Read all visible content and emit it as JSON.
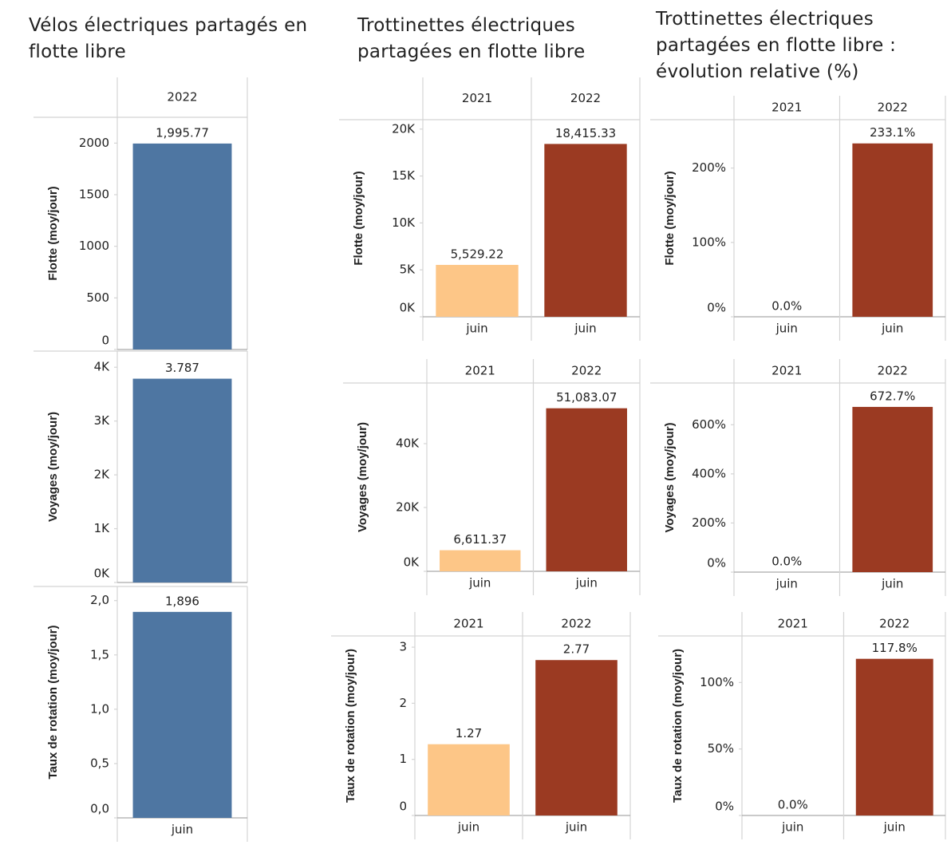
{
  "chart_data": [
    {
      "type": "bar",
      "title": "Vélos électriques partagés en flotte libre",
      "ylabel": "Flotte (moy/jour)",
      "facets": [
        "2022"
      ],
      "categories": [
        null
      ],
      "values": [
        1995.77
      ],
      "value_labels": [
        "1,995.77"
      ],
      "colors": [
        "#4e76a2"
      ],
      "ylim": [
        0,
        2250
      ],
      "yticks": [
        0,
        500,
        1000,
        1500,
        2000
      ]
    },
    {
      "type": "bar",
      "ylabel": "Voyages (moy/jour)",
      "categories": [
        null
      ],
      "values": [
        3787
      ],
      "value_labels": [
        "3.787"
      ],
      "colors": [
        "#4e76a2"
      ],
      "ylim": [
        0,
        4300
      ],
      "yticks": [
        {
          "value": 0,
          "label": "0K"
        },
        {
          "value": 1000,
          "label": "1K"
        },
        {
          "value": 2000,
          "label": "2K"
        },
        {
          "value": 3000,
          "label": "3K"
        },
        {
          "value": 4000,
          "label": "4K"
        }
      ]
    },
    {
      "type": "bar",
      "ylabel": "Taux de rotation (moy/jour)",
      "categories": [
        "juin"
      ],
      "values": [
        1.896
      ],
      "value_labels": [
        "1,896"
      ],
      "colors": [
        "#4e76a2"
      ],
      "ylim": [
        0,
        2.13
      ],
      "yticks": [
        {
          "value": 0,
          "label": "0,0"
        },
        {
          "value": 0.5,
          "label": "0,5"
        },
        {
          "value": 1,
          "label": "1,0"
        },
        {
          "value": 1.5,
          "label": "1,5"
        },
        {
          "value": 2,
          "label": "2,0"
        }
      ]
    },
    {
      "type": "bar",
      "title": "Trottinettes électriques partagées en flotte libre",
      "ylabel": "Flotte (moy/jour)",
      "facets": [
        "2021",
        "2022"
      ],
      "categories": [
        "juin",
        "juin"
      ],
      "values": [
        5529.22,
        18415.33
      ],
      "value_labels": [
        "5,529.22",
        "18,415.33"
      ],
      "colors": [
        "#fdc687",
        "#9b3a22"
      ],
      "ylim": [
        0,
        21000
      ],
      "yticks": [
        {
          "value": 0,
          "label": "0K"
        },
        {
          "value": 5000,
          "label": "5K"
        },
        {
          "value": 10000,
          "label": "10K"
        },
        {
          "value": 15000,
          "label": "15K"
        },
        {
          "value": 20000,
          "label": "20K"
        }
      ]
    },
    {
      "type": "bar",
      "ylabel": "Voyages (moy/jour)",
      "facets": [
        "2021",
        "2022"
      ],
      "categories": [
        "juin",
        "juin"
      ],
      "values": [
        6611.37,
        51083.07
      ],
      "value_labels": [
        "6,611.37",
        "51,083.07"
      ],
      "colors": [
        "#fdc687",
        "#9b3a22"
      ],
      "ylim": [
        0,
        59000
      ],
      "yticks": [
        {
          "value": 0,
          "label": "0K"
        },
        {
          "value": 20000,
          "label": "20K"
        },
        {
          "value": 40000,
          "label": "40K"
        }
      ]
    },
    {
      "type": "bar",
      "ylabel": "Taux de rotation (moy/jour)",
      "facets": [
        "2021",
        "2022"
      ],
      "categories": [
        "juin",
        "juin"
      ],
      "values": [
        1.27,
        2.77
      ],
      "colors": [
        "#fdc687",
        "#9b3a22"
      ],
      "ylim": [
        0,
        3.2
      ],
      "yticks": [
        0,
        1,
        2,
        3
      ]
    },
    {
      "type": "bar",
      "title": "Trottinettes électriques partagées en flotte libre : évolution relative (%)",
      "ylabel": "Flotte (moy/jour)",
      "facets": [
        "2021",
        "2022"
      ],
      "categories": [
        "juin",
        "juin"
      ],
      "values": [
        0,
        233.1
      ],
      "value_labels": [
        "0.0%",
        "233.1%"
      ],
      "colors": [
        "#9b3a22",
        "#9b3a22"
      ],
      "ylim": [
        0,
        265
      ],
      "yticks": [
        {
          "value": 0,
          "label": "0%"
        },
        {
          "value": 100,
          "label": "100%"
        },
        {
          "value": 200,
          "label": "200%"
        }
      ]
    },
    {
      "type": "bar",
      "ylabel": "Voyages (moy/jour)",
      "facets": [
        "2021",
        "2022"
      ],
      "categories": [
        "juin",
        "juin"
      ],
      "values": [
        0,
        672.7
      ],
      "value_labels": [
        "0.0%",
        "672.7%"
      ],
      "colors": [
        "#9b3a22",
        "#9b3a22"
      ],
      "ylim": [
        0,
        770
      ],
      "yticks": [
        {
          "value": 0,
          "label": "0%"
        },
        {
          "value": 200,
          "label": "200%"
        },
        {
          "value": 400,
          "label": "400%"
        },
        {
          "value": 600,
          "label": "600%"
        }
      ]
    },
    {
      "type": "bar",
      "ylabel": "Taux de rotation (moy/jour)",
      "facets": [
        "2021",
        "2022"
      ],
      "categories": [
        "juin",
        "juin"
      ],
      "values": [
        0,
        117.8
      ],
      "value_labels": [
        "0.0%",
        "117.8%"
      ],
      "colors": [
        "#9b3a22",
        "#9b3a22"
      ],
      "ylim": [
        0,
        135
      ],
      "yticks": [
        {
          "value": 0,
          "label": "0%"
        },
        {
          "value": 50,
          "label": "50%"
        },
        {
          "value": 100,
          "label": "100%"
        }
      ]
    }
  ]
}
